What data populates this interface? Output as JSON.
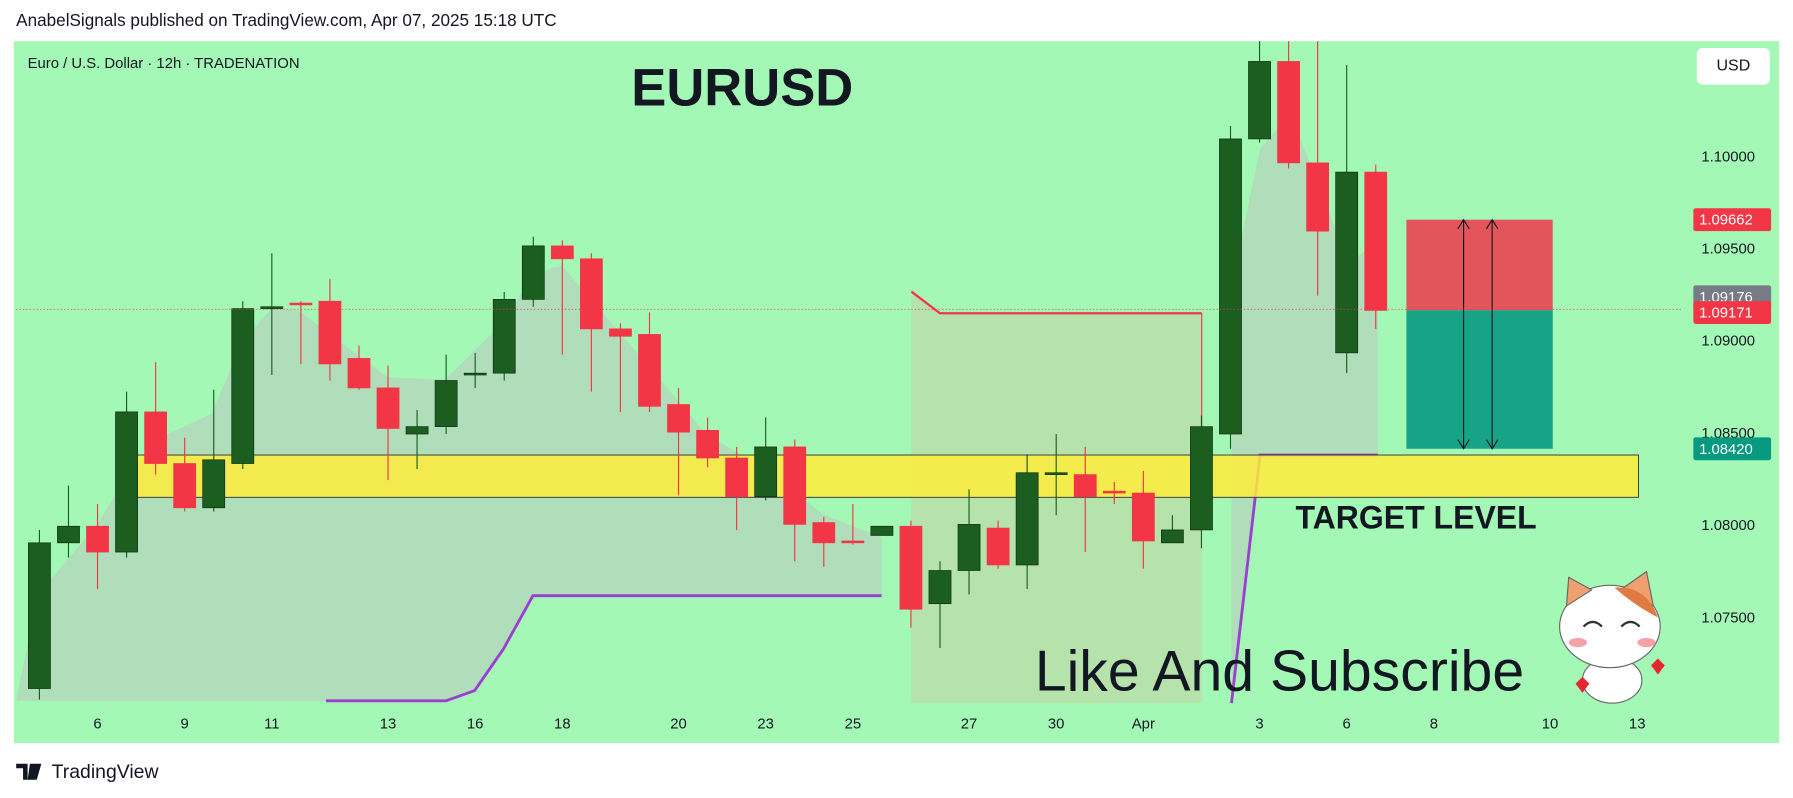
{
  "header": {
    "published": "AnabelSignals published on TradingView.com, Apr 07, 2025 15:18 UTC"
  },
  "chart_data": {
    "type": "candlestick",
    "title": "EURUSD",
    "subtitle": "Euro / U.S. Dollar · 12h · TRADENATION",
    "currency": "USD",
    "up_color": "#1b5e20",
    "down_color": "#f23645",
    "candles": [
      [
        1.0712,
        1.0798,
        1.0706,
        1.0791
      ],
      [
        1.0791,
        1.0822,
        1.0783,
        1.08
      ],
      [
        1.08,
        1.0812,
        1.0766,
        1.0786
      ],
      [
        1.0786,
        1.0873,
        1.0783,
        1.0862
      ],
      [
        1.0862,
        1.0889,
        1.0828,
        1.0834
      ],
      [
        1.0834,
        1.0848,
        1.0808,
        1.081
      ],
      [
        1.081,
        1.0874,
        1.0808,
        1.0836
      ],
      [
        1.0834,
        1.0922,
        1.0831,
        1.0918
      ],
      [
        1.0918,
        1.0948,
        1.0882,
        1.0919
      ],
      [
        1.0921,
        1.0922,
        1.0888,
        1.092
      ],
      [
        1.0922,
        1.0934,
        1.0879,
        1.0888
      ],
      [
        1.0891,
        1.0898,
        1.0874,
        1.0875
      ],
      [
        1.0875,
        1.0887,
        1.0825,
        1.0853
      ],
      [
        1.085,
        1.0863,
        1.0831,
        1.0854
      ],
      [
        1.0854,
        1.0893,
        1.085,
        1.0879
      ],
      [
        1.0882,
        1.0894,
        1.0875,
        1.0883
      ],
      [
        1.0883,
        1.0927,
        1.0879,
        1.0923
      ],
      [
        1.0923,
        1.0957,
        1.0919,
        1.0952
      ],
      [
        1.0952,
        1.0955,
        1.0893,
        1.0945
      ],
      [
        1.0945,
        1.0948,
        1.0873,
        1.0907
      ],
      [
        1.0907,
        1.091,
        1.0862,
        1.0903
      ],
      [
        1.0904,
        1.0916,
        1.0862,
        1.0865
      ],
      [
        1.0866,
        1.0875,
        1.0817,
        1.0851
      ],
      [
        1.0852,
        1.0859,
        1.0832,
        1.0837
      ],
      [
        1.0837,
        1.0843,
        1.0798,
        1.0816
      ],
      [
        1.0816,
        1.0859,
        1.0814,
        1.0843
      ],
      [
        1.0843,
        1.0847,
        1.0781,
        1.0801
      ],
      [
        1.0802,
        1.0805,
        1.0778,
        1.0791
      ],
      [
        1.0792,
        1.0812,
        1.079,
        1.0791
      ],
      [
        1.0795,
        1.08,
        1.0795,
        1.08
      ],
      [
        1.08,
        1.0803,
        1.0745,
        1.0755
      ],
      [
        1.0758,
        1.0781,
        1.0734,
        1.0776
      ],
      [
        1.0776,
        1.082,
        1.0763,
        1.0801
      ],
      [
        1.0799,
        1.0803,
        1.0777,
        1.0779
      ],
      [
        1.0779,
        1.0839,
        1.0766,
        1.0829
      ],
      [
        1.0828,
        1.085,
        1.0806,
        1.0829
      ],
      [
        1.0828,
        1.0843,
        1.0786,
        1.0816
      ],
      [
        1.0819,
        1.0824,
        1.0812,
        1.0818
      ],
      [
        1.0818,
        1.083,
        1.0777,
        1.0792
      ],
      [
        1.0791,
        1.0806,
        1.0791,
        1.0798
      ],
      [
        1.0798,
        1.086,
        1.0788,
        1.0854
      ],
      [
        1.085,
        1.1017,
        1.0842,
        1.101
      ],
      [
        1.101,
        1.1063,
        1.1008,
        1.1052
      ],
      [
        1.1052,
        1.1063,
        1.0994,
        1.0997
      ],
      [
        1.0997,
        1.1063,
        1.0925,
        1.096
      ],
      [
        1.0894,
        1.105,
        1.0883,
        1.0992
      ],
      [
        1.0992,
        1.0996,
        1.0907,
        1.0917
      ]
    ],
    "xlim": [
      -0.8,
      56.5
    ],
    "xticks": [
      {
        "value": 2,
        "label": "6"
      },
      {
        "value": 5,
        "label": "9"
      },
      {
        "value": 8,
        "label": "11"
      },
      {
        "value": 12,
        "label": "13"
      },
      {
        "value": 15,
        "label": "16"
      },
      {
        "value": 18,
        "label": "18"
      },
      {
        "value": 22,
        "label": "20"
      },
      {
        "value": 25,
        "label": "23"
      },
      {
        "value": 28,
        "label": "25"
      },
      {
        "value": 32,
        "label": "27"
      },
      {
        "value": 35,
        "label": "30"
      },
      {
        "value": 38,
        "label": "Apr"
      },
      {
        "value": 42,
        "label": "3"
      },
      {
        "value": 45,
        "label": "6"
      },
      {
        "value": 48,
        "label": "8"
      },
      {
        "value": 52,
        "label": "10"
      },
      {
        "value": 55,
        "label": "13"
      }
    ],
    "ylim": [
      1.0701,
      1.1063
    ],
    "yticks": [
      {
        "value": 1.075,
        "label": "1.07500"
      },
      {
        "value": 1.08,
        "label": "1.08000"
      },
      {
        "value": 1.085,
        "label": "1.08500"
      },
      {
        "value": 1.09,
        "label": "1.09000"
      },
      {
        "value": 1.095,
        "label": "1.09500"
      },
      {
        "value": 1.1,
        "label": "1.10000"
      }
    ],
    "grid": false,
    "price_labels": [
      {
        "value": 1.09662,
        "label": "1.09662",
        "color": "#f23645"
      },
      {
        "value": 1.09176,
        "label": "1.09176",
        "color": "#787b86"
      },
      {
        "value": 1.09171,
        "label": "1.09171",
        "color": "#f23645"
      },
      {
        "value": 1.0842,
        "label": "1.08420",
        "color": "#089981"
      }
    ],
    "annotations": [
      "TARGET LEVEL",
      "Like And Subscribe"
    ]
  },
  "footer": {
    "brand": "TradingView"
  }
}
